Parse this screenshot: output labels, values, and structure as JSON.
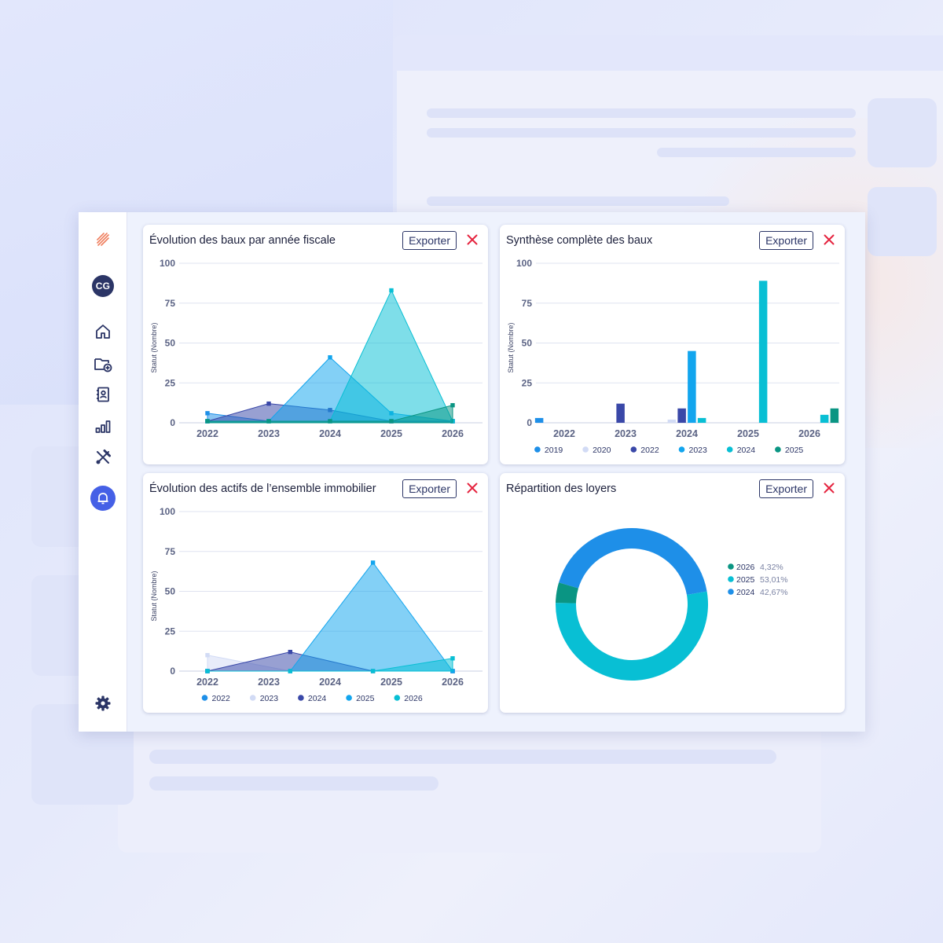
{
  "sidebar": {
    "avatar_initials": "CG",
    "items": [
      {
        "name": "logo",
        "icon": "stripes-logo-icon"
      },
      {
        "name": "home",
        "icon": "home-icon"
      },
      {
        "name": "folder-add",
        "icon": "folder-add-icon"
      },
      {
        "name": "contacts",
        "icon": "contact-book-icon"
      },
      {
        "name": "stats",
        "icon": "bar-chart-icon"
      },
      {
        "name": "tools",
        "icon": "tools-icon"
      },
      {
        "name": "notifications",
        "icon": "bell-icon"
      },
      {
        "name": "settings",
        "icon": "gear-icon"
      }
    ]
  },
  "colors": {
    "accent": "#4560e6",
    "navy": "#2b3566",
    "close_red": "#e5243f",
    "c2019": "#1e8fe8",
    "c2020": "#d2dbf5",
    "c2022": "#3a48a8",
    "c2023": "#12a5ee",
    "c2024": "#08bfd4",
    "c2025": "#0a9583"
  },
  "cards": {
    "c1": {
      "title": "Évolution des baux par année fiscale",
      "export_label": "Exporter"
    },
    "c2": {
      "title": "Synthèse complète des baux",
      "export_label": "Exporter"
    },
    "c3": {
      "title": "Évolution des actifs de l’ensemble immobilier",
      "export_label": "Exporter"
    },
    "c4": {
      "title": "Répartition des loyers",
      "export_label": "Exporter"
    }
  },
  "chart_data": [
    {
      "id": "c1",
      "type": "area",
      "title": "Évolution des baux par année fiscale",
      "ylabel": "Statut (Nombre)",
      "ylim": [
        0,
        100
      ],
      "yticks": [
        0,
        25,
        50,
        75,
        100
      ],
      "grid": true,
      "categories": [
        "2022",
        "2023",
        "2024",
        "2025",
        "2026"
      ],
      "series": [
        {
          "color": "#1e8fe8",
          "values": [
            [
              0,
              6
            ],
            [
              1.0,
              1
            ],
            [
              2.0,
              1
            ],
            [
              3.0,
              1
            ],
            [
              4.0,
              1
            ]
          ]
        },
        {
          "color": "#3a48a8",
          "values": [
            [
              0,
              1
            ],
            [
              1.0,
              12
            ],
            [
              2.0,
              8
            ],
            [
              3.0,
              1
            ],
            [
              4.0,
              1
            ]
          ]
        },
        {
          "color": "#12a5ee",
          "values": [
            [
              0,
              1
            ],
            [
              1.0,
              1
            ],
            [
              2.0,
              41
            ],
            [
              3.0,
              6
            ],
            [
              4.0,
              1
            ]
          ]
        },
        {
          "color": "#08bfd4",
          "values": [
            [
              0,
              1
            ],
            [
              1.0,
              1
            ],
            [
              2.0,
              1
            ],
            [
              3.0,
              83
            ],
            [
              4.0,
              1
            ]
          ]
        },
        {
          "color": "#0a9583",
          "values": [
            [
              0,
              1
            ],
            [
              1.0,
              1
            ],
            [
              2.0,
              1
            ],
            [
              3.0,
              1
            ],
            [
              4.0,
              11
            ]
          ]
        }
      ]
    },
    {
      "id": "c2",
      "type": "bar",
      "title": "Synthèse complète des baux",
      "ylabel": "Statut (Nombre)",
      "ylim": [
        0,
        100
      ],
      "yticks": [
        0,
        25,
        50,
        75,
        100
      ],
      "grid": true,
      "categories": [
        "2022",
        "2023",
        "2024",
        "2025",
        "2026"
      ],
      "series": [
        {
          "name": "2019",
          "color": "#1e8fe8",
          "values": [
            3,
            0,
            0,
            0,
            0
          ]
        },
        {
          "name": "2020",
          "color": "#d2dbf5",
          "values": [
            0,
            0,
            2,
            0,
            0
          ]
        },
        {
          "name": "2022",
          "color": "#3a48a8",
          "values": [
            0,
            12,
            9,
            0,
            0
          ]
        },
        {
          "name": "2023",
          "color": "#12a5ee",
          "values": [
            0,
            0,
            45,
            0,
            0
          ]
        },
        {
          "name": "2024",
          "color": "#08bfd4",
          "values": [
            0,
            0,
            3,
            89,
            5
          ]
        },
        {
          "name": "2025",
          "color": "#0a9583",
          "values": [
            0,
            0,
            0,
            0,
            9
          ]
        }
      ],
      "legend": "bottom"
    },
    {
      "id": "c3",
      "type": "area",
      "title": "Évolution des actifs de l’ensemble immobilier",
      "ylabel": "Statut (Nombre)",
      "ylim": [
        0,
        100
      ],
      "yticks": [
        0,
        25,
        50,
        75,
        100
      ],
      "grid": true,
      "categories": [
        "2022",
        "2023",
        "2024",
        "2025",
        "2026"
      ],
      "series": [
        {
          "name": "2022",
          "color": "#1e8fe8",
          "values": [
            [
              0,
              0
            ],
            [
              1.35,
              0
            ],
            [
              4.0,
              0
            ]
          ]
        },
        {
          "name": "2023",
          "color": "#d2dbf5",
          "values": [
            [
              0,
              10
            ],
            [
              1.35,
              0
            ],
            [
              4.0,
              0
            ]
          ]
        },
        {
          "name": "2024",
          "color": "#3a48a8",
          "values": [
            [
              0,
              0
            ],
            [
              1.35,
              12
            ],
            [
              2.7,
              0
            ],
            [
              4.0,
              0
            ]
          ]
        },
        {
          "name": "2025",
          "color": "#12a5ee",
          "values": [
            [
              0,
              0
            ],
            [
              1.35,
              0
            ],
            [
              2.7,
              68
            ],
            [
              4.0,
              0
            ]
          ]
        },
        {
          "name": "2026",
          "color": "#08bfd4",
          "values": [
            [
              0,
              0
            ],
            [
              1.35,
              0
            ],
            [
              2.7,
              0
            ],
            [
              4.0,
              8
            ]
          ]
        }
      ],
      "legend": "bottom"
    },
    {
      "id": "c4",
      "type": "pie",
      "title": "Répartition des loyers",
      "slices": [
        {
          "label": "2026",
          "value": 4.32,
          "display": "4,32%",
          "color": "#0a9583"
        },
        {
          "label": "2025",
          "value": 53.01,
          "display": "53,01%",
          "color": "#08bfd4"
        },
        {
          "label": "2024",
          "value": 42.67,
          "display": "42,67%",
          "color": "#1e8fe8"
        }
      ],
      "legend": "right"
    }
  ]
}
